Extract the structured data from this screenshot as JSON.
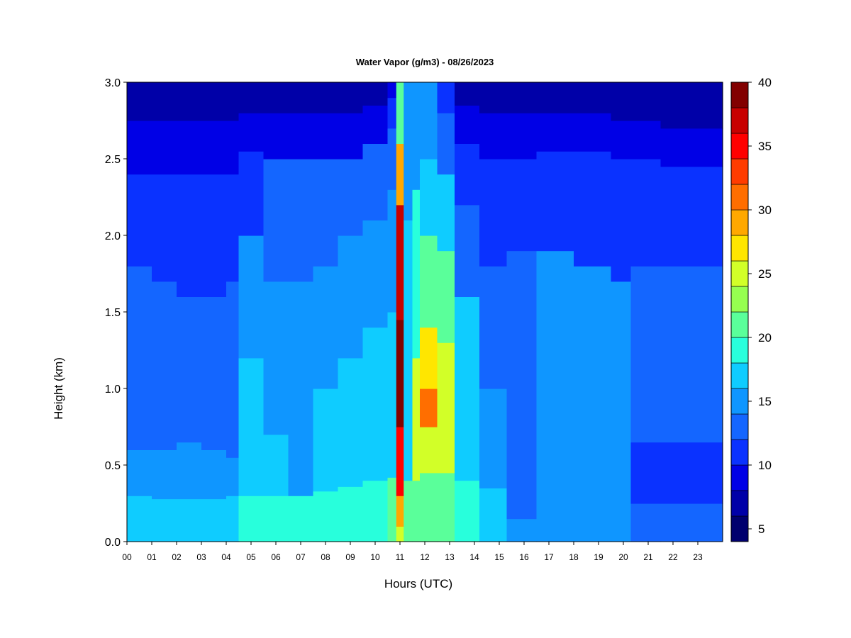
{
  "chart_data": {
    "type": "heatmap",
    "title": "Water Vapor (g/m3) - 08/26/2023",
    "xlabel": "Hours (UTC)",
    "ylabel": "Height (km)",
    "xlim": [
      0,
      24
    ],
    "ylim": [
      0,
      3.0
    ],
    "x_ticks": [
      "00",
      "01",
      "02",
      "03",
      "04",
      "05",
      "06",
      "07",
      "08",
      "09",
      "10",
      "11",
      "12",
      "13",
      "14",
      "15",
      "16",
      "17",
      "18",
      "19",
      "20",
      "21",
      "22",
      "23"
    ],
    "y_ticks": [
      "0.0",
      "0.5",
      "1.0",
      "1.5",
      "2.0",
      "2.5",
      "3.0"
    ],
    "colorbar": {
      "min": 4,
      "max": 40,
      "step": 2,
      "tick_labels": [
        "5",
        "10",
        "15",
        "20",
        "25",
        "30",
        "35",
        "40"
      ],
      "tick_values": [
        5,
        10,
        15,
        20,
        25,
        30,
        35,
        40
      ],
      "colors": [
        "#00006e",
        "#0000a8",
        "#0000e6",
        "#0a32ff",
        "#1466ff",
        "#0f96ff",
        "#0fccff",
        "#28ffdc",
        "#5aff9a",
        "#96ff50",
        "#d2ff28",
        "#ffe600",
        "#ffa800",
        "#ff6e00",
        "#ff3c00",
        "#ff0000",
        "#c80000",
        "#820000"
      ]
    },
    "columns_by_hour": [
      {
        "hour": 0.0,
        "levels": [
          [
            0,
            0.3,
            17
          ],
          [
            0.3,
            0.6,
            14
          ],
          [
            0.6,
            1.8,
            13
          ],
          [
            1.8,
            2.4,
            11
          ],
          [
            2.4,
            2.75,
            9
          ],
          [
            2.75,
            3.0,
            7
          ]
        ]
      },
      {
        "hour": 1.0,
        "levels": [
          [
            0,
            0.28,
            17
          ],
          [
            0.28,
            0.6,
            14
          ],
          [
            0.6,
            1.7,
            13
          ],
          [
            1.7,
            2.4,
            11
          ],
          [
            2.4,
            2.75,
            9
          ],
          [
            2.75,
            3.0,
            7
          ]
        ]
      },
      {
        "hour": 2.0,
        "levels": [
          [
            0,
            0.28,
            17
          ],
          [
            0.28,
            0.65,
            14
          ],
          [
            0.65,
            1.6,
            13
          ],
          [
            1.6,
            2.4,
            11
          ],
          [
            2.4,
            2.75,
            9
          ],
          [
            2.75,
            3.0,
            7
          ]
        ]
      },
      {
        "hour": 3.0,
        "levels": [
          [
            0,
            0.28,
            17
          ],
          [
            0.28,
            0.6,
            14
          ],
          [
            0.6,
            1.6,
            13
          ],
          [
            1.6,
            2.4,
            11
          ],
          [
            2.4,
            2.75,
            9
          ],
          [
            2.75,
            3.0,
            7
          ]
        ]
      },
      {
        "hour": 4.0,
        "levels": [
          [
            0,
            0.3,
            17
          ],
          [
            0.3,
            0.55,
            14
          ],
          [
            0.55,
            1.7,
            13
          ],
          [
            1.7,
            2.4,
            11
          ],
          [
            2.4,
            2.75,
            9
          ],
          [
            2.75,
            3.0,
            7
          ]
        ]
      },
      {
        "hour": 4.5,
        "levels": [
          [
            0,
            0.3,
            19
          ],
          [
            0.3,
            1.2,
            16
          ],
          [
            1.2,
            2.0,
            14
          ],
          [
            2.0,
            2.55,
            11
          ],
          [
            2.55,
            2.8,
            9
          ],
          [
            2.8,
            3.0,
            7
          ]
        ]
      },
      {
        "hour": 5.5,
        "levels": [
          [
            0,
            0.3,
            19
          ],
          [
            0.3,
            0.7,
            16
          ],
          [
            0.7,
            1.7,
            15
          ],
          [
            1.7,
            2.5,
            12
          ],
          [
            2.5,
            2.8,
            9
          ],
          [
            2.8,
            3.0,
            7
          ]
        ]
      },
      {
        "hour": 6.5,
        "levels": [
          [
            0,
            0.3,
            19
          ],
          [
            0.3,
            0.5,
            15
          ],
          [
            0.5,
            1.7,
            14
          ],
          [
            1.7,
            2.5,
            12
          ],
          [
            2.5,
            2.8,
            9
          ],
          [
            2.8,
            3.0,
            7
          ]
        ]
      },
      {
        "hour": 7.5,
        "levels": [
          [
            0,
            0.33,
            19
          ],
          [
            0.33,
            1.0,
            16
          ],
          [
            1.0,
            1.8,
            14
          ],
          [
            1.8,
            2.5,
            12
          ],
          [
            2.5,
            2.8,
            9
          ],
          [
            2.8,
            3.0,
            7
          ]
        ]
      },
      {
        "hour": 8.5,
        "levels": [
          [
            0,
            0.36,
            19
          ],
          [
            0.36,
            1.2,
            16
          ],
          [
            1.2,
            2.0,
            15
          ],
          [
            2.0,
            2.5,
            12
          ],
          [
            2.5,
            2.8,
            9
          ],
          [
            2.8,
            3.0,
            7
          ]
        ]
      },
      {
        "hour": 9.5,
        "levels": [
          [
            0,
            0.4,
            19
          ],
          [
            0.4,
            1.4,
            16
          ],
          [
            1.4,
            2.1,
            15
          ],
          [
            2.1,
            2.6,
            12
          ],
          [
            2.6,
            2.85,
            9
          ],
          [
            2.85,
            3.0,
            7
          ]
        ]
      },
      {
        "hour": 10.5,
        "levels": [
          [
            0,
            0.42,
            20
          ],
          [
            0.42,
            1.5,
            17
          ],
          [
            1.5,
            2.3,
            15
          ],
          [
            2.3,
            2.7,
            13
          ],
          [
            2.7,
            2.9,
            10
          ],
          [
            2.9,
            3.0,
            8
          ]
        ]
      },
      {
        "hour": 10.85,
        "levels": [
          [
            0,
            0.1,
            24
          ],
          [
            0.1,
            0.3,
            29
          ],
          [
            0.3,
            0.75,
            35
          ],
          [
            0.75,
            1.45,
            39
          ],
          [
            1.45,
            2.2,
            36
          ],
          [
            2.2,
            2.6,
            28
          ],
          [
            2.6,
            3.0,
            20
          ]
        ]
      },
      {
        "hour": 11.15,
        "levels": [
          [
            0,
            0.4,
            20
          ],
          [
            0.4,
            2.1,
            17
          ],
          [
            2.1,
            3.0,
            14
          ]
        ]
      },
      {
        "hour": 11.5,
        "levels": [
          [
            0,
            0.4,
            20
          ],
          [
            0.4,
            1.2,
            24
          ],
          [
            1.2,
            2.3,
            18
          ],
          [
            2.3,
            3.0,
            14
          ]
        ]
      },
      {
        "hour": 11.8,
        "levels": [
          [
            0,
            0.45,
            20
          ],
          [
            0.45,
            0.75,
            25
          ],
          [
            0.75,
            1.0,
            30
          ],
          [
            1.0,
            1.4,
            26
          ],
          [
            1.4,
            2.0,
            21
          ],
          [
            2.0,
            2.5,
            17
          ],
          [
            2.5,
            3.0,
            14
          ]
        ]
      },
      {
        "hour": 12.5,
        "levels": [
          [
            0,
            0.45,
            20
          ],
          [
            0.45,
            1.3,
            24
          ],
          [
            1.3,
            1.9,
            21
          ],
          [
            1.9,
            2.4,
            17
          ],
          [
            2.4,
            2.8,
            13
          ],
          [
            2.8,
            3.0,
            10
          ]
        ]
      },
      {
        "hour": 13.2,
        "levels": [
          [
            0,
            0.4,
            18
          ],
          [
            0.4,
            1.6,
            16
          ],
          [
            1.6,
            2.2,
            13
          ],
          [
            2.2,
            2.6,
            11
          ],
          [
            2.6,
            2.85,
            9
          ],
          [
            2.85,
            3.0,
            7
          ]
        ]
      },
      {
        "hour": 14.2,
        "levels": [
          [
            0,
            0.35,
            17
          ],
          [
            0.35,
            1.0,
            15
          ],
          [
            1.0,
            1.8,
            13
          ],
          [
            1.8,
            2.5,
            11
          ],
          [
            2.5,
            2.8,
            9
          ],
          [
            2.8,
            3.0,
            7
          ]
        ]
      },
      {
        "hour": 15.3,
        "levels": [
          [
            0,
            0.15,
            15
          ],
          [
            0.15,
            1.9,
            13
          ],
          [
            1.9,
            2.5,
            11
          ],
          [
            2.5,
            2.8,
            9
          ],
          [
            2.8,
            3.0,
            7
          ]
        ]
      },
      {
        "hour": 16.5,
        "levels": [
          [
            0,
            0.25,
            15
          ],
          [
            0.25,
            1.9,
            14
          ],
          [
            1.9,
            2.55,
            11
          ],
          [
            2.55,
            2.8,
            9
          ],
          [
            2.8,
            3.0,
            7
          ]
        ]
      },
      {
        "hour": 18.0,
        "levels": [
          [
            0,
            0.3,
            15
          ],
          [
            0.3,
            1.8,
            14
          ],
          [
            1.8,
            2.55,
            11
          ],
          [
            2.55,
            2.8,
            9
          ],
          [
            2.8,
            3.0,
            7
          ]
        ]
      },
      {
        "hour": 19.5,
        "levels": [
          [
            0,
            0.3,
            15
          ],
          [
            0.3,
            1.7,
            14
          ],
          [
            1.7,
            2.5,
            11
          ],
          [
            2.5,
            2.75,
            9
          ],
          [
            2.75,
            3.0,
            7
          ]
        ]
      },
      {
        "hour": 20.3,
        "levels": [
          [
            0,
            0.25,
            13
          ],
          [
            0.25,
            0.65,
            11
          ],
          [
            0.65,
            1.8,
            13
          ],
          [
            1.8,
            2.5,
            11
          ],
          [
            2.5,
            2.75,
            9
          ],
          [
            2.75,
            3.0,
            7
          ]
        ]
      },
      {
        "hour": 21.5,
        "levels": [
          [
            0,
            0.25,
            13
          ],
          [
            0.25,
            0.65,
            11
          ],
          [
            0.65,
            1.8,
            13
          ],
          [
            1.8,
            2.45,
            11
          ],
          [
            2.45,
            2.7,
            9
          ],
          [
            2.7,
            3.0,
            6
          ]
        ]
      },
      {
        "hour": 24.0,
        "levels": [
          [
            0,
            0.25,
            13
          ],
          [
            0.25,
            0.65,
            11
          ],
          [
            0.65,
            1.8,
            13
          ],
          [
            1.8,
            2.4,
            11
          ],
          [
            2.4,
            2.7,
            9
          ],
          [
            2.7,
            3.0,
            6
          ]
        ]
      }
    ],
    "grid": false,
    "legend": "colorbar-right"
  }
}
